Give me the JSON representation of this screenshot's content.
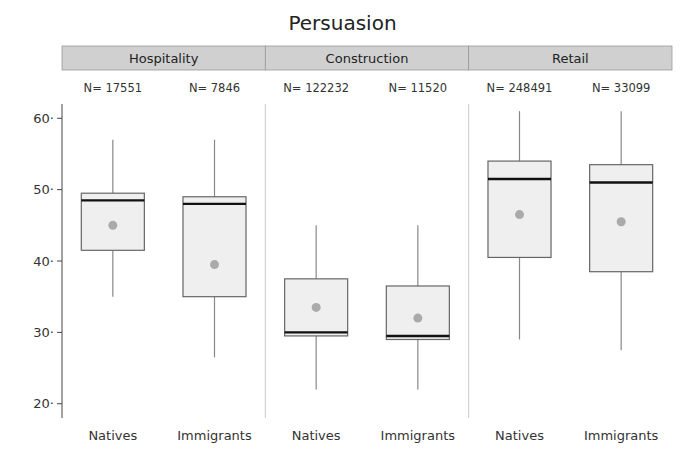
{
  "chart_data": {
    "type": "box",
    "title": "Persuasion",
    "categories": [
      "Natives",
      "Immigrants",
      "Natives",
      "Immigrants",
      "Natives",
      "Immigrants"
    ],
    "groups": [
      "Hospitality",
      "Hospitality",
      "Construction",
      "Construction",
      "Retail",
      "Retail"
    ],
    "n_labels": [
      "N= 17551",
      "N= 7846",
      "N= 122232",
      "N= 11520",
      "N= 248491",
      "N= 33099"
    ],
    "boxes": [
      {
        "q1": 41.5,
        "median": 48.5,
        "q3": 49.5,
        "mean": 45.0,
        "whislo": 35.0,
        "whishi": 57.0
      },
      {
        "q1": 35.0,
        "median": 48.0,
        "q3": 49.0,
        "mean": 39.5,
        "whislo": 26.5,
        "whishi": 57.0
      },
      {
        "q1": 29.5,
        "median": 30.0,
        "q3": 37.5,
        "mean": 33.5,
        "whislo": 22.0,
        "whishi": 45.0
      },
      {
        "q1": 29.0,
        "median": 29.5,
        "q3": 36.5,
        "mean": 32.0,
        "whislo": 22.0,
        "whishi": 45.0
      },
      {
        "q1": 40.5,
        "median": 51.5,
        "q3": 54.0,
        "mean": 46.5,
        "whislo": 29.0,
        "whishi": 61.0
      },
      {
        "q1": 38.5,
        "median": 51.0,
        "q3": 53.5,
        "mean": 45.5,
        "whislo": 27.5,
        "whishi": 61.0
      }
    ],
    "ylim": [
      18,
      62
    ],
    "yticks": [
      {
        "value": 20,
        "label": "20·"
      },
      {
        "value": 30,
        "label": "30·"
      },
      {
        "value": 40,
        "label": "40·"
      },
      {
        "value": 50,
        "label": "50·"
      },
      {
        "value": 60,
        "label": "60·"
      }
    ],
    "color": "#efefef",
    "grid": false
  }
}
